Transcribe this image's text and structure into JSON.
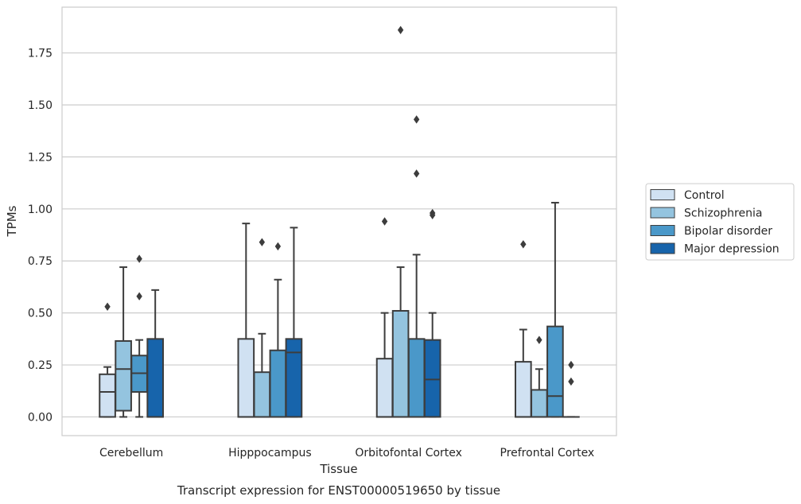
{
  "chart_data": {
    "type": "box",
    "title": "",
    "caption": "Transcript expression for ENST00000519650 by tissue",
    "xlabel": "Tissue",
    "ylabel": "TPMs",
    "ylim": [
      -0.09,
      1.97
    ],
    "yticks": [
      0.0,
      0.25,
      0.5,
      0.75,
      1.0,
      1.25,
      1.5,
      1.75
    ],
    "ytick_labels": [
      "0.00",
      "0.25",
      "0.50",
      "0.75",
      "1.00",
      "1.25",
      "1.50",
      "1.75"
    ],
    "grid": "horizontal",
    "legend_position": "right",
    "categories": [
      "Cerebellum",
      "Hipppocampus",
      "Orbitofontal Cortex",
      "Prefrontal Cortex"
    ],
    "series": [
      {
        "name": "Control",
        "color": "#d0e1f2",
        "boxes": [
          {
            "whislo": 0.0,
            "q1": 0.0,
            "med": 0.12,
            "q3": 0.205,
            "whishi": 0.24,
            "fliers": [
              0.53
            ]
          },
          {
            "whislo": 0.0,
            "q1": 0.0,
            "med": 0.0,
            "q3": 0.375,
            "whishi": 0.93,
            "fliers": []
          },
          {
            "whislo": 0.0,
            "q1": 0.0,
            "med": 0.0,
            "q3": 0.28,
            "whishi": 0.5,
            "fliers": [
              0.94
            ]
          },
          {
            "whislo": 0.0,
            "q1": 0.0,
            "med": 0.0,
            "q3": 0.265,
            "whishi": 0.42,
            "fliers": [
              0.83
            ]
          }
        ]
      },
      {
        "name": "Schizophrenia",
        "color": "#94c4df",
        "boxes": [
          {
            "whislo": 0.0,
            "q1": 0.03,
            "med": 0.23,
            "q3": 0.365,
            "whishi": 0.72,
            "fliers": []
          },
          {
            "whislo": 0.0,
            "q1": 0.0,
            "med": 0.0,
            "q3": 0.215,
            "whishi": 0.4,
            "fliers": [
              0.84
            ]
          },
          {
            "whislo": 0.0,
            "q1": 0.0,
            "med": 0.0,
            "q3": 0.51,
            "whishi": 0.72,
            "fliers": [
              1.86
            ]
          },
          {
            "whislo": 0.0,
            "q1": 0.0,
            "med": 0.0,
            "q3": 0.13,
            "whishi": 0.23,
            "fliers": [
              0.37
            ]
          }
        ]
      },
      {
        "name": "Bipolar disorder",
        "color": "#4a98c9",
        "boxes": [
          {
            "whislo": 0.0,
            "q1": 0.12,
            "med": 0.21,
            "q3": 0.295,
            "whishi": 0.37,
            "fliers": [
              0.58,
              0.76
            ]
          },
          {
            "whislo": 0.0,
            "q1": 0.0,
            "med": 0.0,
            "q3": 0.32,
            "whishi": 0.66,
            "fliers": [
              0.82
            ]
          },
          {
            "whislo": 0.0,
            "q1": 0.0,
            "med": 0.0,
            "q3": 0.375,
            "whishi": 0.78,
            "fliers": [
              1.43,
              1.17
            ]
          },
          {
            "whislo": 0.0,
            "q1": 0.0,
            "med": 0.1,
            "q3": 0.435,
            "whishi": 1.03,
            "fliers": []
          }
        ]
      },
      {
        "name": "Major depression",
        "color": "#1764ab",
        "boxes": [
          {
            "whislo": 0.0,
            "q1": 0.0,
            "med": 0.0,
            "q3": 0.375,
            "whishi": 0.61,
            "fliers": []
          },
          {
            "whislo": 0.0,
            "q1": 0.0,
            "med": 0.31,
            "q3": 0.375,
            "whishi": 0.91,
            "fliers": []
          },
          {
            "whislo": 0.0,
            "q1": 0.0,
            "med": 0.18,
            "q3": 0.37,
            "whishi": 0.5,
            "fliers": [
              0.98,
              0.97
            ]
          },
          {
            "whislo": 0.0,
            "q1": 0.0,
            "med": 0.0,
            "q3": 0.0,
            "whishi": 0.0,
            "fliers": [
              0.25,
              0.17
            ]
          }
        ]
      }
    ]
  },
  "colors": {
    "edge": "#3d3d3d",
    "grid": "#cccccc",
    "spine": "#cccccc"
  }
}
